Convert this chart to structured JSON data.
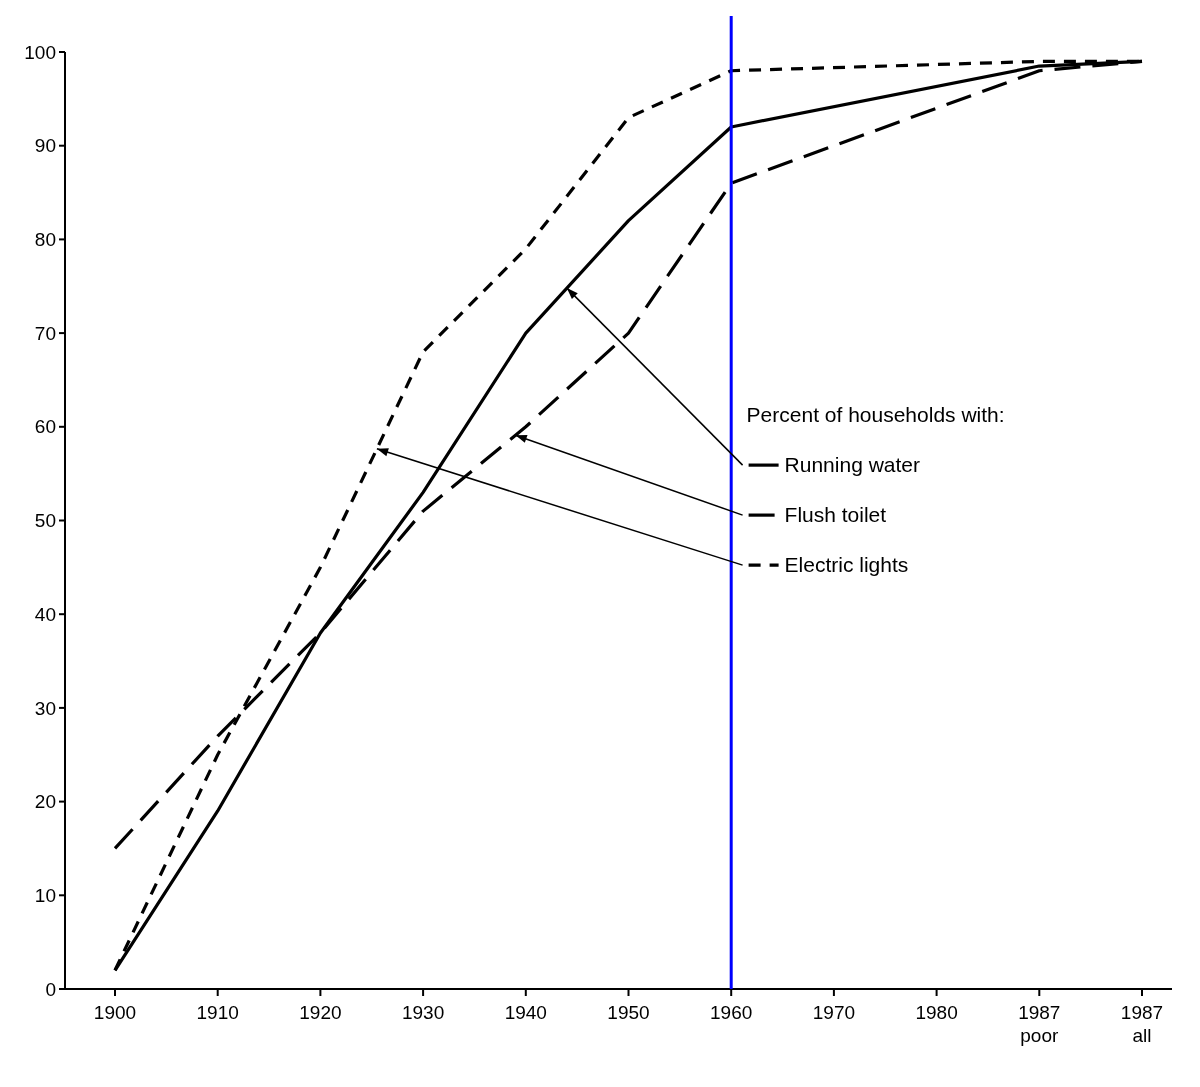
{
  "chart_data": {
    "type": "line",
    "categories": [
      "1900",
      "1910",
      "1920",
      "1930",
      "1940",
      "1950",
      "1960",
      "1970",
      "1980",
      "1987 poor",
      "1987 all"
    ],
    "ylim": [
      0,
      100
    ],
    "yticks": [
      0,
      10,
      20,
      30,
      40,
      50,
      60,
      70,
      80,
      90,
      100
    ],
    "grid": false,
    "marker": "none",
    "legend": "right",
    "ref_lines": [
      {
        "axis": "x",
        "value": "1960",
        "color": "#0000ff",
        "line_style": "solid"
      }
    ],
    "series": [
      {
        "name": "Running water",
        "color": "#000000",
        "line_style": "solid",
        "values": [
          2,
          19,
          38,
          53,
          70,
          82,
          92,
          null,
          null,
          98.5,
          99
        ]
      },
      {
        "name": "Flush toilet",
        "color": "#000000",
        "line_style": "dashed",
        "values": [
          15,
          27,
          38,
          51,
          60,
          70,
          86,
          null,
          null,
          98,
          99
        ]
      },
      {
        "name": "Electric lights",
        "color": "#000000",
        "line_style": "dashed",
        "values": [
          2,
          25,
          45,
          68,
          79,
          93,
          98,
          null,
          null,
          99,
          99
        ]
      }
    ],
    "annotations": [
      "Percent of households with:"
    ]
  }
}
